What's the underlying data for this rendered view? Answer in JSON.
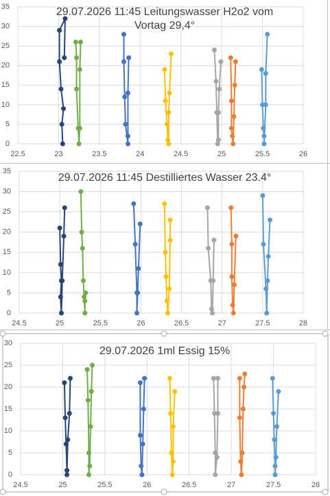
{
  "chart_data": [
    {
      "type": "scatter",
      "title": "29.07.2026 11:45 Leitungswasser H2o2 vom Vortag 29,4°",
      "xlim": [
        22.5,
        26
      ],
      "xticks": [
        22.5,
        23,
        23.5,
        24,
        24.5,
        25,
        25.5,
        26
      ],
      "ylim": [
        0,
        35
      ],
      "yticks": [
        0,
        5,
        10,
        15,
        20,
        25,
        30,
        35
      ],
      "grid": true,
      "series": [
        {
          "color": "#264478",
          "x": [
            23.05,
            23.04,
            23.06,
            23.03,
            23.01,
            23.01,
            23.08,
            23.07
          ],
          "values": [
            0,
            5,
            9,
            14,
            21,
            29,
            32,
            22
          ]
        },
        {
          "color": "#70ad47",
          "x": [
            23.21,
            23.22,
            23.22,
            23.24,
            23.25,
            23.26,
            23.26,
            23.27
          ],
          "values": [
            26,
            22,
            14,
            4,
            0,
            4,
            19,
            26
          ]
        },
        {
          "color": "#4472c4",
          "x": [
            23.8,
            23.8,
            23.81,
            23.82,
            23.85,
            23.85,
            23.85,
            23.86
          ],
          "values": [
            28,
            21,
            12,
            5,
            0,
            2,
            13,
            22
          ]
        },
        {
          "color": "#ffc000",
          "x": [
            24.3,
            24.31,
            24.33,
            24.34,
            24.35,
            24.35,
            24.36,
            24.38
          ],
          "values": [
            19,
            11,
            5,
            1,
            0,
            8,
            13,
            23
          ]
        },
        {
          "color": "#a5a5a5",
          "x": [
            24.91,
            24.93,
            24.94,
            24.95,
            24.96,
            24.96,
            24.97,
            24.99
          ],
          "values": [
            24,
            16,
            8,
            0,
            1,
            8,
            14,
            21
          ]
        },
        {
          "color": "#ed7d31",
          "x": [
            25.11,
            25.12,
            25.12,
            25.13,
            25.14,
            25.15,
            25.16,
            25.17
          ],
          "values": [
            22,
            11,
            4,
            2,
            0,
            7,
            15,
            21
          ]
        },
        {
          "color": "#5b9bd5",
          "x": [
            25.49,
            25.5,
            25.51,
            25.52,
            25.52,
            25.54,
            25.54,
            25.56
          ],
          "values": [
            19,
            10,
            4,
            2,
            0,
            10,
            18,
            28
          ]
        }
      ]
    },
    {
      "type": "scatter",
      "title": "29.07.2026 11:45 Destilliertes Wasser 23.4°",
      "xlim": [
        24.5,
        28
      ],
      "xticks": [
        24.5,
        25,
        25.5,
        26,
        26.5,
        27,
        27.5,
        28
      ],
      "ylim": [
        0,
        35
      ],
      "yticks": [
        0,
        5,
        10,
        15,
        20,
        25,
        30,
        35
      ],
      "grid": true,
      "series": [
        {
          "color": "#264478",
          "x": [
            25.0,
            25.01,
            25.02,
            25.01,
            25.02,
            25.03,
            25.05,
            25.06
          ],
          "values": [
            21,
            12,
            8,
            4,
            0,
            8,
            19,
            26
          ]
        },
        {
          "color": "#70ad47",
          "x": [
            25.26,
            25.27,
            25.28,
            25.29,
            25.3,
            25.31,
            25.31,
            25.32
          ],
          "values": [
            30,
            20,
            16,
            8,
            4,
            0,
            3,
            5
          ]
        },
        {
          "color": "#4472c4",
          "x": [
            25.91,
            25.93,
            25.95,
            25.95,
            25.96,
            25.97,
            25.99
          ],
          "values": [
            27,
            17,
            5,
            0,
            5,
            11,
            22
          ]
        },
        {
          "color": "#ffc000",
          "x": [
            26.29,
            26.3,
            26.31,
            26.32,
            26.33,
            26.35,
            26.36,
            26.36
          ],
          "values": [
            27,
            15,
            9,
            3,
            0,
            6,
            18,
            23
          ]
        },
        {
          "color": "#a5a5a5",
          "x": [
            26.82,
            26.83,
            26.86,
            26.87,
            26.88,
            26.89,
            26.9
          ],
          "values": [
            26,
            16,
            8,
            1,
            0,
            8,
            18
          ]
        },
        {
          "color": "#ed7d31",
          "x": [
            27.11,
            27.12,
            27.12,
            27.13,
            27.14,
            27.15,
            27.17
          ],
          "values": [
            26,
            17,
            9,
            2,
            0,
            7,
            19
          ]
        },
        {
          "color": "#5b9bd5",
          "x": [
            27.5,
            27.51,
            27.54,
            27.55,
            27.56,
            27.57,
            27.59
          ],
          "values": [
            29,
            17,
            6,
            0,
            8,
            14,
            23
          ]
        }
      ]
    },
    {
      "type": "scatter",
      "title": "29.07.2026  1ml Essig 15%",
      "xlim": [
        24.5,
        28
      ],
      "xticks": [
        24.5,
        25,
        25.5,
        26,
        26.5,
        27,
        27.5,
        28
      ],
      "ylim": [
        0,
        30
      ],
      "yticks": [
        0,
        5,
        10,
        15,
        20,
        25,
        30
      ],
      "grid": true,
      "series": [
        {
          "color": "#264478",
          "x": [
            25.02,
            25.03,
            25.04,
            25.05,
            25.05,
            25.06,
            25.08,
            25.09
          ],
          "values": [
            21,
            13,
            7,
            1,
            0,
            8,
            14,
            22
          ]
        },
        {
          "color": "#70ad47",
          "x": [
            25.29,
            25.3,
            25.31,
            25.31,
            25.32,
            25.33,
            25.34,
            25.35
          ],
          "values": [
            24,
            17,
            5,
            0,
            2,
            11,
            19,
            25
          ]
        },
        {
          "color": "#4472c4",
          "x": [
            25.92,
            25.92,
            25.93,
            25.94,
            25.95,
            25.96,
            25.97
          ],
          "values": [
            21,
            9,
            2,
            0,
            7,
            15,
            22
          ]
        },
        {
          "color": "#ffc000",
          "x": [
            26.27,
            26.28,
            26.29,
            26.3,
            26.31,
            26.31,
            26.33
          ],
          "values": [
            22,
            14,
            5,
            0,
            3,
            11,
            19
          ]
        },
        {
          "color": "#a5a5a5",
          "x": [
            26.79,
            26.8,
            26.81,
            26.81,
            26.83,
            26.84,
            26.84
          ],
          "values": [
            22,
            14,
            5,
            0,
            4,
            14,
            22
          ]
        },
        {
          "color": "#ed7d31",
          "x": [
            27.1,
            27.1,
            27.11,
            27.12,
            27.13,
            27.14,
            27.15,
            27.16
          ],
          "values": [
            22,
            13,
            3,
            0,
            5,
            15,
            20,
            23
          ]
        },
        {
          "color": "#5b9bd5",
          "x": [
            27.49,
            27.5,
            27.51,
            27.52,
            27.52,
            27.53,
            27.54,
            27.56
          ],
          "values": [
            22,
            14,
            8,
            2,
            0,
            4,
            11,
            19
          ]
        }
      ]
    }
  ]
}
